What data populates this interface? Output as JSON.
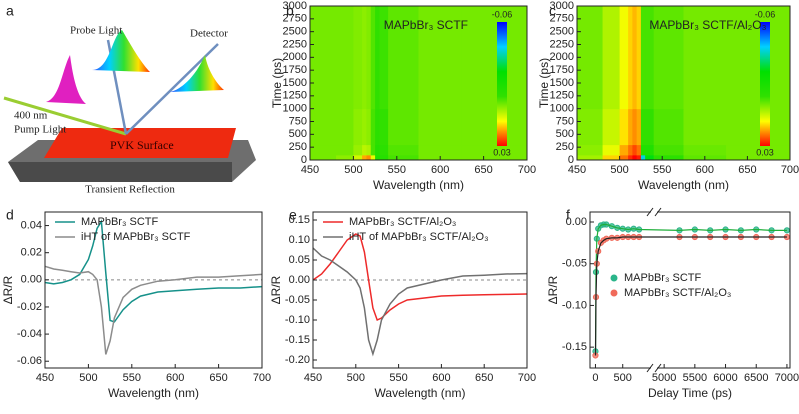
{
  "panel_labels": [
    "a",
    "b",
    "c",
    "d",
    "e",
    "f"
  ],
  "diagram": {
    "probe": "Probe Light",
    "detector": "Detector",
    "pump_line1": "400 nm",
    "pump_line2": "Pump Light",
    "surface": "PVK Surface",
    "caption": "Transient Reflection"
  },
  "chart_data": [
    {
      "type": "heatmap",
      "annotation": "MAPbBr₃ SCTF",
      "xlabel": "Wavelength (nm)",
      "ylabel": "Time (ps)",
      "x_edges": [
        450,
        480,
        500,
        510,
        515,
        520,
        525,
        530,
        540,
        575,
        625,
        700
      ],
      "y_edges": [
        0,
        100,
        300,
        1000,
        3000
      ],
      "z": [
        [
          0,
          0.002,
          0.008,
          0.018,
          0.02,
          0.01,
          -0.012,
          -0.01,
          -0.004,
          0,
          0
        ],
        [
          0,
          0,
          0.003,
          0.006,
          0.005,
          -0.004,
          -0.01,
          -0.008,
          -0.003,
          0,
          0
        ],
        [
          0,
          0,
          0.002,
          0.003,
          0.002,
          -0.004,
          -0.008,
          -0.006,
          -0.002,
          0,
          0
        ],
        [
          0,
          0,
          0.001,
          0.002,
          0.001,
          -0.003,
          -0.006,
          -0.005,
          -0.002,
          0,
          0
        ]
      ],
      "zlim": [
        -0.06,
        0.03
      ],
      "zticks": [
        -0.06,
        0.03
      ],
      "colormap": [
        "#0000ff",
        "#00d0ff",
        "#00e000",
        "#30e000",
        "#ffff00",
        "#ff0000"
      ],
      "xlim": [
        450,
        700
      ],
      "xticks": [
        450,
        500,
        550,
        600,
        650,
        700
      ],
      "ylim": [
        0,
        3000
      ],
      "yticks": [
        0,
        250,
        500,
        750,
        1000,
        1250,
        1500,
        1750,
        2000,
        2250,
        2500,
        2750,
        3000
      ]
    },
    {
      "type": "heatmap",
      "annotation": "MAPbBr₃ SCTF/Al₂O₃",
      "xlabel": "Wavelength (nm)",
      "ylabel": "Time (ps)",
      "x_edges": [
        450,
        480,
        500,
        510,
        515,
        520,
        525,
        530,
        540,
        575,
        625,
        700
      ],
      "y_edges": [
        0,
        100,
        300,
        1000,
        3000
      ],
      "z": [
        [
          0.004,
          0.015,
          0.022,
          0.027,
          0.03,
          0.028,
          -0.04,
          -0.025,
          -0.008,
          -0.002,
          0
        ],
        [
          0.002,
          0.01,
          0.018,
          0.022,
          0.025,
          0.022,
          -0.012,
          -0.012,
          -0.004,
          -0.001,
          0
        ],
        [
          0.001,
          0.007,
          0.014,
          0.018,
          0.02,
          0.018,
          -0.006,
          -0.006,
          -0.003,
          0,
          0
        ],
        [
          0,
          0.005,
          0.011,
          0.015,
          0.017,
          0.015,
          -0.004,
          -0.004,
          -0.002,
          0,
          0
        ]
      ],
      "zlim": [
        -0.06,
        0.03
      ],
      "zticks": [
        -0.06,
        0.03
      ],
      "colormap": [
        "#0000ff",
        "#00d0ff",
        "#00e000",
        "#30e000",
        "#ffff00",
        "#ff0000"
      ],
      "xlim": [
        450,
        700
      ],
      "xticks": [
        450,
        500,
        550,
        600,
        650,
        700
      ],
      "ylim": [
        0,
        3000
      ],
      "yticks": [
        0,
        250,
        500,
        750,
        1000,
        1250,
        1500,
        1750,
        2000,
        2250,
        2500,
        2750,
        3000
      ]
    },
    {
      "type": "line",
      "xlabel": "Wavelength (nm)",
      "ylabel": "ΔR/R",
      "legend": "upper left",
      "x": [
        450,
        460,
        470,
        480,
        490,
        500,
        505,
        510,
        515,
        520,
        525,
        530,
        540,
        550,
        560,
        580,
        600,
        625,
        650,
        675,
        700
      ],
      "series": [
        {
          "name": "MAPbBr₃ SCTF",
          "color": "#16918a",
          "values": [
            -0.002,
            -0.003,
            -0.002,
            0.0,
            0.004,
            0.015,
            0.025,
            0.038,
            0.043,
            0.005,
            -0.03,
            -0.031,
            -0.022,
            -0.016,
            -0.012,
            -0.009,
            -0.008,
            -0.007,
            -0.006,
            -0.006,
            -0.005
          ]
        },
        {
          "name": "iHT of MAPbBr₃ SCTF",
          "color": "#8c8c8c",
          "values": [
            0.01,
            0.008,
            0.007,
            0.006,
            0.005,
            0.006,
            0.004,
            0.0,
            -0.02,
            -0.055,
            -0.045,
            -0.028,
            -0.013,
            -0.007,
            -0.004,
            -0.001,
            0.0,
            0.002,
            0.002,
            0.003,
            0.004
          ]
        }
      ],
      "xlim": [
        450,
        700
      ],
      "xticks": [
        450,
        500,
        550,
        600,
        650,
        700
      ],
      "ylim": [
        -0.065,
        0.05
      ],
      "yticks": [
        -0.06,
        -0.04,
        -0.02,
        {
          "value": 0,
          "label": "0.00"
        },
        0.02,
        0.04
      ]
    },
    {
      "type": "line",
      "xlabel": "Wavelength (nm)",
      "ylabel": "ΔR/R",
      "legend": "upper left",
      "x": [
        450,
        460,
        470,
        480,
        490,
        500,
        505,
        510,
        515,
        520,
        525,
        530,
        540,
        550,
        560,
        580,
        600,
        625,
        650,
        675,
        700
      ],
      "series": [
        {
          "name": "MAPbBr₃ SCTF/Al₂O₃",
          "color": "#ee2a2a",
          "values": [
            0.0,
            0.015,
            0.04,
            0.07,
            0.1,
            0.115,
            0.11,
            0.07,
            0.0,
            -0.07,
            -0.1,
            -0.095,
            -0.075,
            -0.06,
            -0.05,
            -0.045,
            -0.04,
            -0.038,
            -0.037,
            -0.036,
            -0.035
          ]
        },
        {
          "name": "iHT of MAPbBr₃ SCTF/Al₂O₃",
          "color": "#707070",
          "values": [
            0.08,
            0.06,
            0.05,
            0.035,
            0.02,
            0.0,
            -0.02,
            -0.07,
            -0.15,
            -0.185,
            -0.15,
            -0.1,
            -0.06,
            -0.035,
            -0.02,
            -0.01,
            0.0,
            0.01,
            0.012,
            0.015,
            0.016
          ]
        }
      ],
      "xlim": [
        450,
        700
      ],
      "xticks": [
        450,
        500,
        550,
        600,
        650,
        700
      ],
      "ylim": [
        -0.22,
        0.17
      ],
      "yticks": [
        {
          "value": -0.2,
          "label": "-0.20"
        },
        -0.15,
        {
          "value": -0.1,
          "label": "-0.10"
        },
        -0.05,
        {
          "value": 0,
          "label": "0.00"
        },
        0.05,
        {
          "value": 0.1,
          "label": "0.10"
        },
        0.15
      ]
    },
    {
      "type": "scatter",
      "xlabel": "Delay Time (ps)",
      "ylabel": "ΔR/R",
      "legend": "center left",
      "series": [
        {
          "name": "MAPbBr₃ SCTF",
          "color": "#2bb58a",
          "line_color": "#1fae3a",
          "x": [
            0,
            10,
            25,
            50,
            100,
            150,
            200,
            300,
            400,
            500,
            600,
            700,
            800,
            5250,
            5500,
            5750,
            6000,
            6250,
            6500,
            6750,
            7000
          ],
          "values": [
            -0.155,
            -0.06,
            -0.02,
            -0.008,
            -0.004,
            -0.003,
            -0.003,
            -0.005,
            -0.007,
            -0.008,
            -0.009,
            -0.008,
            -0.009,
            -0.01,
            -0.009,
            -0.01,
            -0.009,
            -0.01,
            -0.009,
            -0.01,
            -0.01
          ]
        },
        {
          "name": "MAPbBr₃ SCTF/Al₂O₃",
          "color": "#f06a5a",
          "line_color": "#222222",
          "x": [
            0,
            10,
            25,
            50,
            100,
            150,
            200,
            300,
            400,
            500,
            600,
            700,
            800,
            5250,
            5500,
            5750,
            6000,
            6250,
            6500,
            6750,
            7000
          ],
          "values": [
            -0.16,
            -0.09,
            -0.05,
            -0.035,
            -0.025,
            -0.022,
            -0.02,
            -0.019,
            -0.019,
            -0.018,
            -0.018,
            -0.018,
            -0.018,
            -0.018,
            -0.018,
            -0.018,
            -0.018,
            -0.018,
            -0.018,
            -0.018,
            -0.018
          ]
        }
      ],
      "x_segments": [
        [
          -100,
          1000
        ],
        [
          4900,
          7050
        ]
      ],
      "xticks": [
        0,
        500,
        5000,
        5500,
        6000,
        6500,
        7000
      ],
      "ylim": [
        -0.175,
        0.012
      ],
      "yticks": [
        -0.15,
        {
          "value": -0.1,
          "label": "-0.10"
        },
        -0.05,
        {
          "value": 0,
          "label": "0.00"
        }
      ]
    }
  ]
}
